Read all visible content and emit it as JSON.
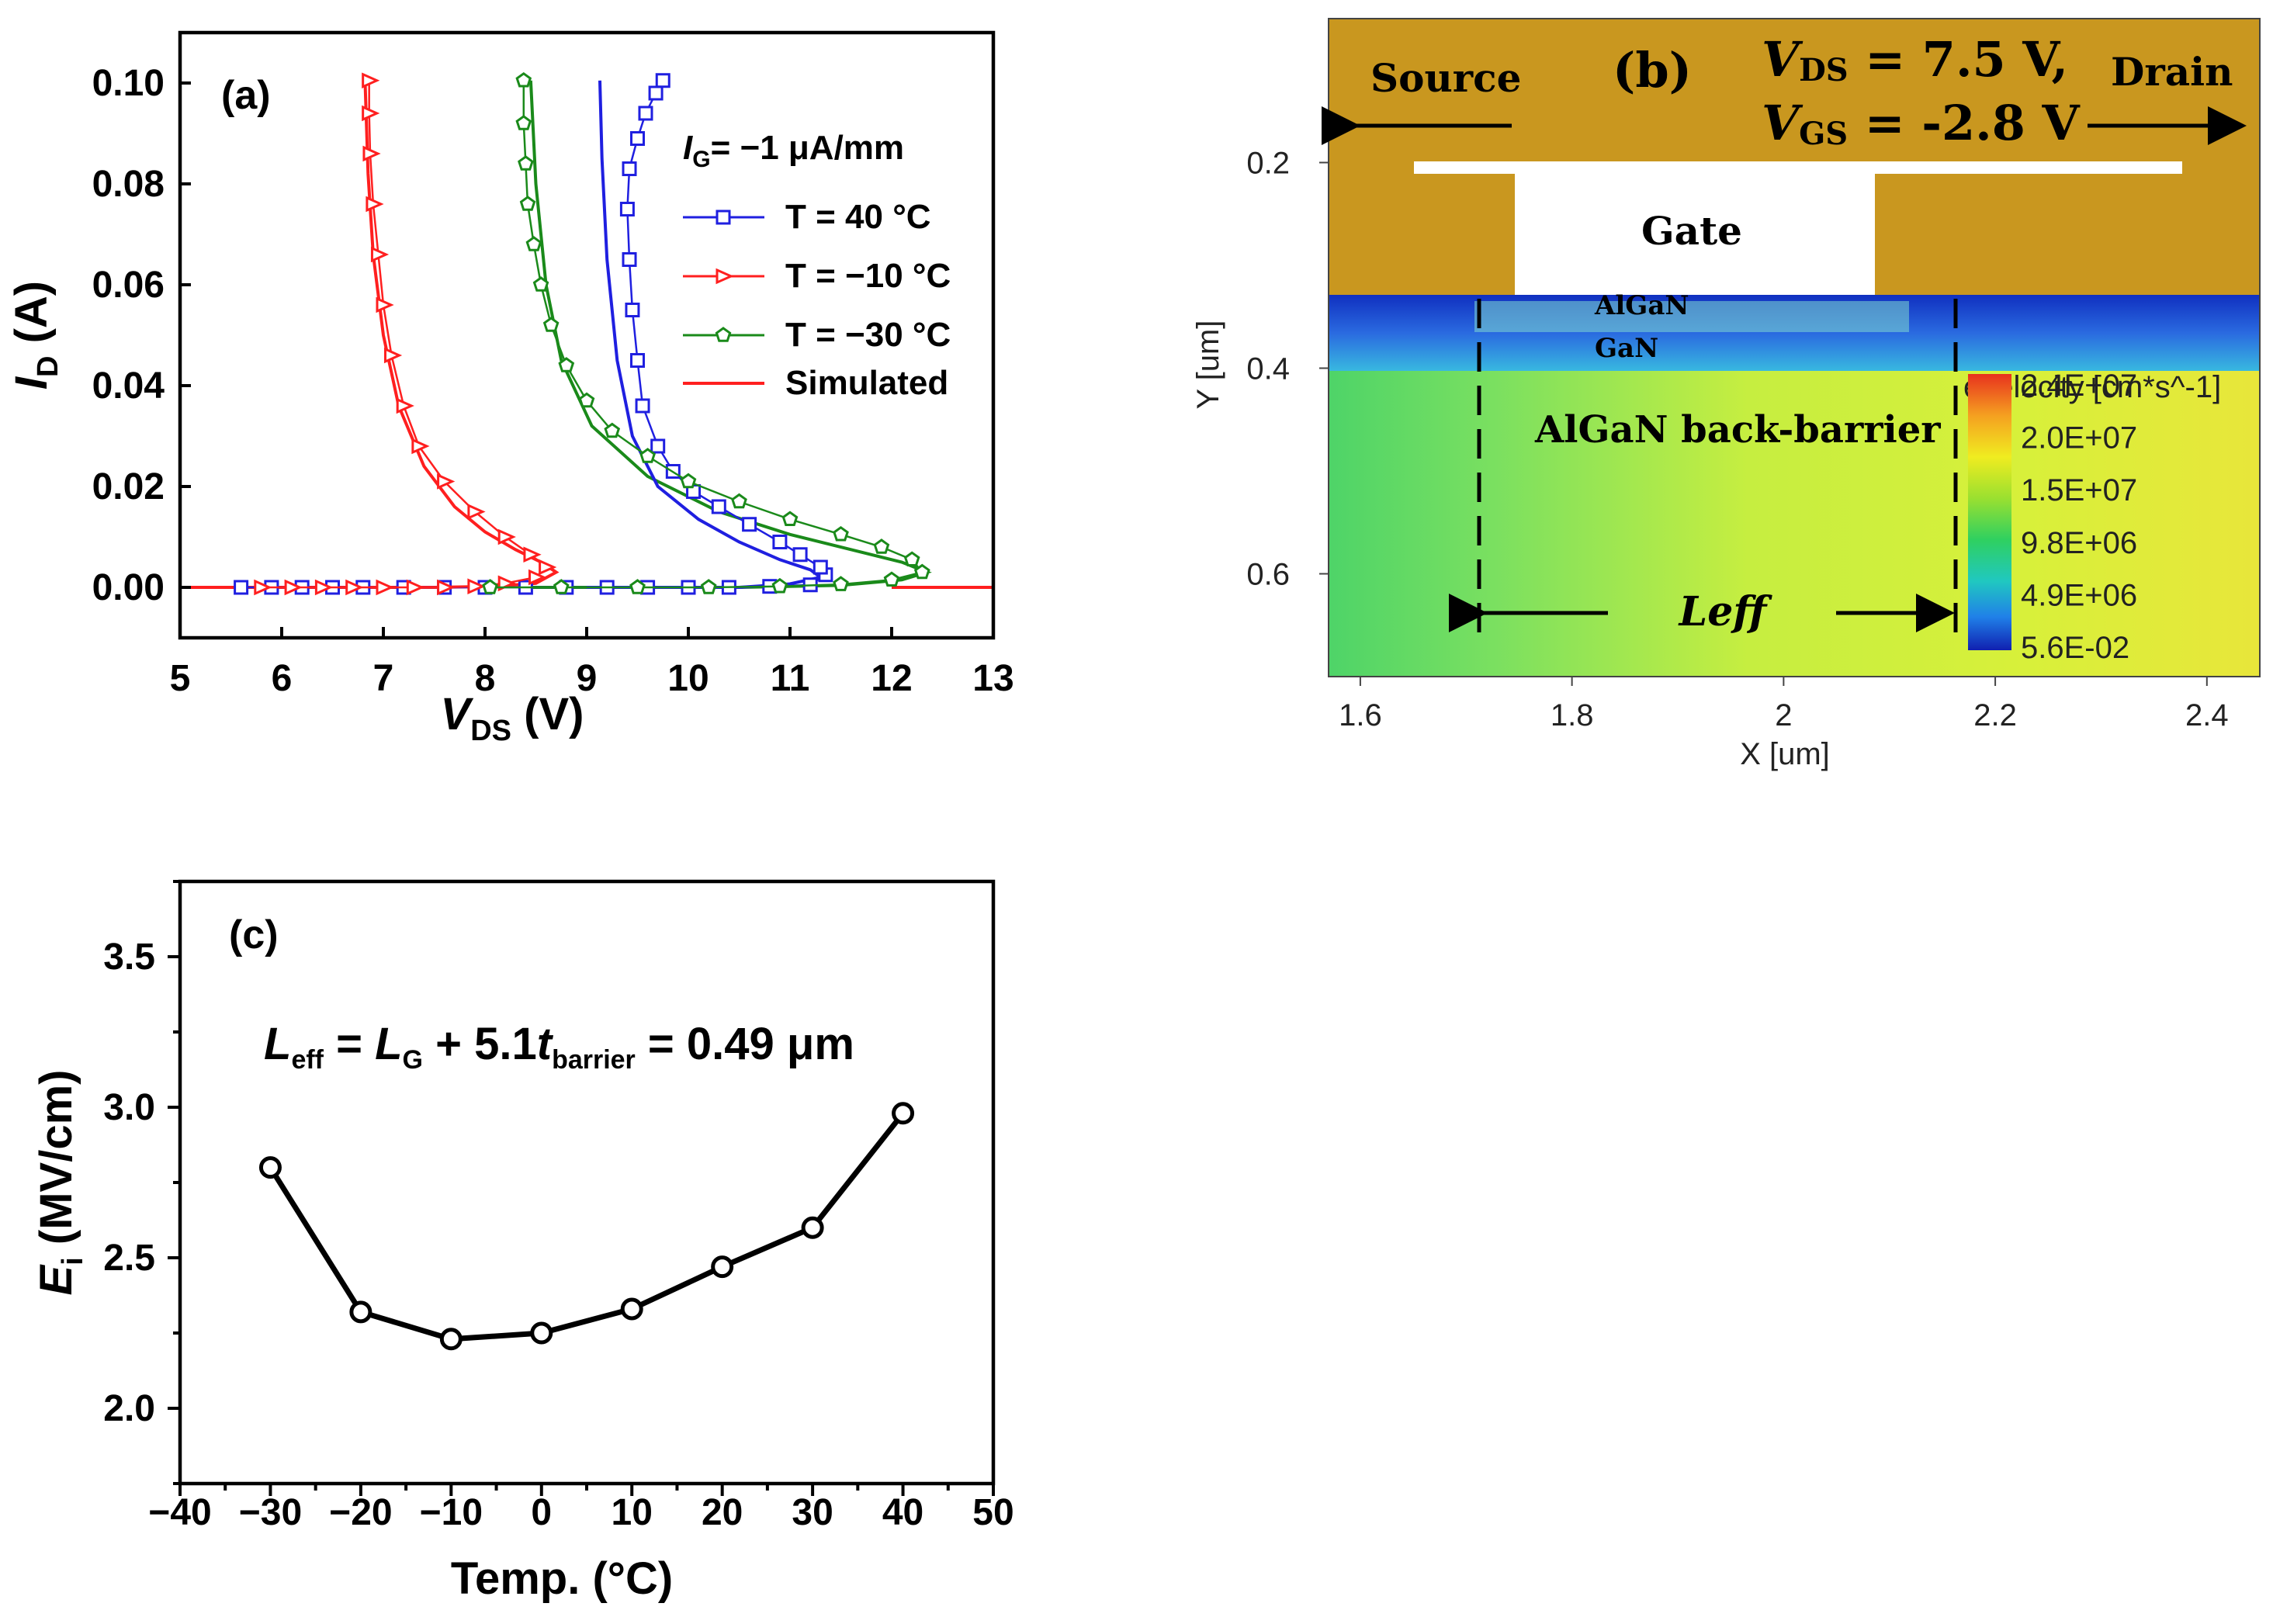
{
  "chart_data": [
    {
      "id": "a",
      "type": "line",
      "panel_label": "(a)",
      "xlabel_main": "V",
      "xlabel_sub": "DS",
      "xlabel_unit": " (V)",
      "ylabel_main": "I",
      "ylabel_sub": "D",
      "ylabel_unit": " (A)",
      "xlim": [
        5,
        13
      ],
      "ylim": [
        -0.01,
        0.11
      ],
      "xticks": [
        "5",
        "6",
        "7",
        "8",
        "9",
        "10",
        "11",
        "12",
        "13"
      ],
      "yticks": [
        "0.00",
        "0.02",
        "0.04",
        "0.06",
        "0.08",
        "0.10"
      ],
      "legend_title_main": "I",
      "legend_title_sub": "G",
      "legend_title_rest": "= −1 μA/mm",
      "legend": [
        "T =  40 °C",
        "T = −10 °C",
        "T = −30 °C",
        "Simulated"
      ],
      "colors": [
        "#1f1fe0",
        "#ff1f1f",
        "#1a8a1a",
        "#ff1f1f"
      ],
      "series": [
        {
          "name": "T =  40 °C",
          "marker": "square",
          "color": "#1f1fe0",
          "points": [
            [
              5.6,
              0
            ],
            [
              5.9,
              0
            ],
            [
              6.2,
              0
            ],
            [
              6.5,
              0
            ],
            [
              6.8,
              0
            ],
            [
              7.2,
              0
            ],
            [
              7.6,
              0
            ],
            [
              8.0,
              0
            ],
            [
              8.4,
              0
            ],
            [
              8.8,
              0
            ],
            [
              9.2,
              0
            ],
            [
              9.6,
              0
            ],
            [
              10.0,
              0
            ],
            [
              10.4,
              0
            ],
            [
              10.8,
              0.0002
            ],
            [
              11.2,
              0.0005
            ],
            [
              11.35,
              0.0025
            ],
            [
              11.3,
              0.004
            ],
            [
              11.1,
              0.0065
            ],
            [
              10.9,
              0.009
            ],
            [
              10.6,
              0.0125
            ],
            [
              10.3,
              0.016
            ],
            [
              10.05,
              0.019
            ],
            [
              9.85,
              0.023
            ],
            [
              9.7,
              0.028
            ],
            [
              9.55,
              0.036
            ],
            [
              9.5,
              0.045
            ],
            [
              9.45,
              0.055
            ],
            [
              9.42,
              0.065
            ],
            [
              9.4,
              0.075
            ],
            [
              9.42,
              0.083
            ],
            [
              9.5,
              0.089
            ],
            [
              9.58,
              0.094
            ],
            [
              9.68,
              0.098
            ],
            [
              9.75,
              0.1005
            ]
          ]
        },
        {
          "name": "T = −10 °C",
          "marker": "triangle",
          "color": "#ff1f1f",
          "points": [
            [
              5.8,
              0
            ],
            [
              6.1,
              0
            ],
            [
              6.4,
              0
            ],
            [
              6.7,
              0
            ],
            [
              7.0,
              0
            ],
            [
              7.3,
              0
            ],
            [
              7.6,
              0
            ],
            [
              7.9,
              0.0002
            ],
            [
              8.2,
              0.0008
            ],
            [
              8.5,
              0.002
            ],
            [
              8.6,
              0.004
            ],
            [
              8.45,
              0.0065
            ],
            [
              8.2,
              0.01
            ],
            [
              7.9,
              0.015
            ],
            [
              7.6,
              0.021
            ],
            [
              7.35,
              0.028
            ],
            [
              7.2,
              0.036
            ],
            [
              7.08,
              0.046
            ],
            [
              7.0,
              0.056
            ],
            [
              6.95,
              0.066
            ],
            [
              6.9,
              0.076
            ],
            [
              6.87,
              0.086
            ],
            [
              6.86,
              0.094
            ],
            [
              6.86,
              0.1005
            ]
          ]
        },
        {
          "name": "T = −30 °C",
          "marker": "pentagon",
          "color": "#1a8a1a",
          "points": [
            [
              8.05,
              0
            ],
            [
              8.75,
              0
            ],
            [
              9.5,
              0
            ],
            [
              10.2,
              0
            ],
            [
              10.9,
              0.0002
            ],
            [
              11.5,
              0.0006
            ],
            [
              12.0,
              0.0015
            ],
            [
              12.3,
              0.003
            ],
            [
              12.2,
              0.0055
            ],
            [
              11.9,
              0.008
            ],
            [
              11.5,
              0.0105
            ],
            [
              11.0,
              0.0135
            ],
            [
              10.5,
              0.017
            ],
            [
              10.0,
              0.021
            ],
            [
              9.6,
              0.026
            ],
            [
              9.25,
              0.031
            ],
            [
              9.0,
              0.037
            ],
            [
              8.8,
              0.044
            ],
            [
              8.65,
              0.052
            ],
            [
              8.55,
              0.06
            ],
            [
              8.48,
              0.068
            ],
            [
              8.42,
              0.076
            ],
            [
              8.4,
              0.084
            ],
            [
              8.38,
              0.092
            ],
            [
              8.38,
              0.1005
            ]
          ]
        },
        {
          "name": "Simulated",
          "marker": "none",
          "color": "#ff1f1f",
          "curves": [
            [
              [
                5.0,
                0
              ],
              [
                7.5,
                0
              ],
              [
                8.1,
                0.0002
              ],
              [
                8.5,
                0.0008
              ],
              [
                8.7,
                0.003
              ],
              [
                8.55,
                0.005
              ],
              [
                8.3,
                0.0075
              ],
              [
                8.0,
                0.011
              ],
              [
                7.7,
                0.016
              ],
              [
                7.4,
                0.024
              ],
              [
                7.15,
                0.036
              ],
              [
                7.0,
                0.05
              ],
              [
                6.9,
                0.066
              ],
              [
                6.85,
                0.082
              ],
              [
                6.82,
                0.1005
              ]
            ],
            [
              [
                8.4,
                0
              ],
              [
                10.5,
                0
              ],
              [
                11.5,
                0.0004
              ],
              [
                12.1,
                0.0015
              ],
              [
                12.35,
                0.003
              ],
              [
                12.1,
                0.005
              ],
              [
                11.6,
                0.0075
              ],
              [
                11.0,
                0.0105
              ],
              [
                10.3,
                0.015
              ],
              [
                9.6,
                0.022
              ],
              [
                9.05,
                0.032
              ],
              [
                8.75,
                0.045
              ],
              [
                8.6,
                0.06
              ],
              [
                8.5,
                0.08
              ],
              [
                8.45,
                0.1005
              ]
            ],
            [
              [
                9.0,
                0
              ],
              [
                10.5,
                0
              ],
              [
                11.0,
                0.0007
              ],
              [
                11.3,
                0.002
              ],
              [
                11.2,
                0.0035
              ],
              [
                10.9,
                0.0055
              ],
              [
                10.5,
                0.009
              ],
              [
                10.1,
                0.0135
              ],
              [
                9.7,
                0.02
              ],
              [
                9.45,
                0.03
              ],
              [
                9.3,
                0.045
              ],
              [
                9.2,
                0.065
              ],
              [
                9.15,
                0.085
              ],
              [
                9.13,
                0.1005
              ]
            ],
            [
              [
                12.0,
                0
              ],
              [
                13.0,
                0
              ]
            ]
          ]
        }
      ]
    },
    {
      "id": "b",
      "type": "heatmap",
      "panel_label": "(b)",
      "bias_line1_main": "V",
      "bias_line1_sub": "DS",
      "bias_line1_rest": " = 7.5 V,",
      "bias_line2_main": "V",
      "bias_line2_sub": "GS",
      "bias_line2_rest": " = -2.8 V",
      "source_label": "Source",
      "drain_label": "Drain",
      "gate_label": "Gate",
      "algan_label": "AlGaN",
      "gan_label": "GaN",
      "backbarrier_label": "AlGaN back-barrier",
      "leff_label": "Leff",
      "xlabel": "X [um]",
      "ylabel": "Y [um]",
      "xticks": [
        "1.6",
        "1.8",
        "2",
        "2.2",
        "2.4"
      ],
      "yticks": [
        "0.2",
        "0.4",
        "0.6"
      ],
      "colorbar_title": "evelocity [cm*s^-1]",
      "colorbar_ticks": [
        "2.4E+07",
        "2.0E+07",
        "1.5E+07",
        "9.8E+06",
        "4.9E+06",
        "5.6E-02"
      ]
    },
    {
      "id": "c",
      "type": "line",
      "panel_label": "(c)",
      "xlabel": "Temp. (°C)",
      "ylabel_main": "E",
      "ylabel_sub": "i",
      "ylabel_unit": " (MV/cm)",
      "xlim": [
        -40,
        50
      ],
      "ylim": [
        1.75,
        3.75
      ],
      "xticks": [
        "−40",
        "−30",
        "−20",
        "−10",
        "0",
        "10",
        "20",
        "30",
        "40",
        "50"
      ],
      "yticks": [
        "2.0",
        "2.5",
        "3.0",
        "3.5"
      ],
      "annotation": {
        "L1": "L",
        "L1sub": "eff",
        "eq": " = ",
        "L2": "L",
        "L2sub": "G",
        "mid": " + 5.1",
        "t": "t",
        "tsub": "barrier",
        "end": " = 0.49 μm"
      },
      "x": [
        -30,
        -20,
        -10,
        0,
        10,
        20,
        30,
        40
      ],
      "y": [
        2.8,
        2.32,
        2.23,
        2.25,
        2.33,
        2.47,
        2.6,
        2.98
      ]
    }
  ]
}
